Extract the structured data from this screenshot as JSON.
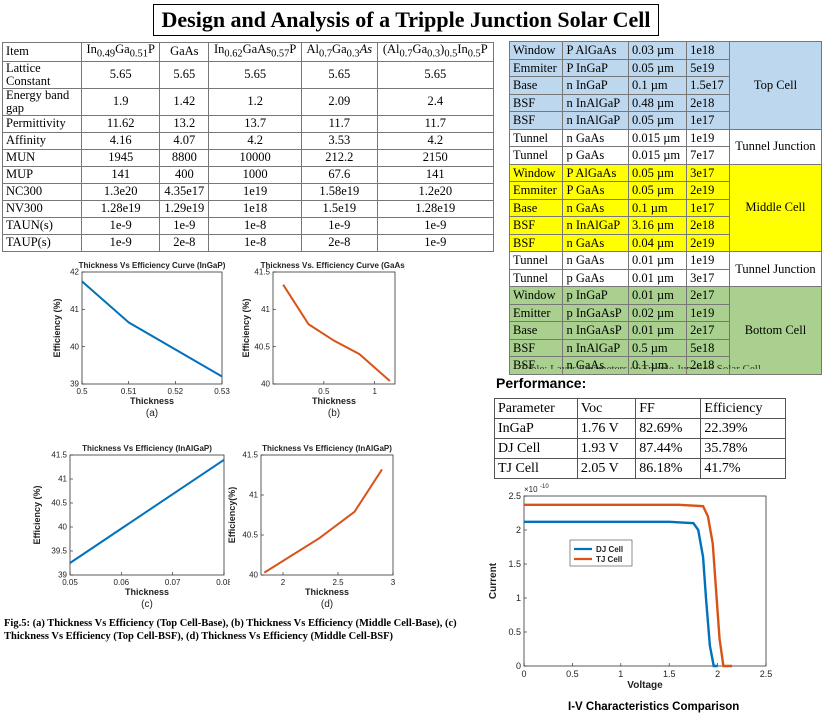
{
  "title": "Design and Analysis of a Tripple Junction Solar Cell",
  "param_table": {
    "header": {
      "item": "Item",
      "col1": {
        "a": "In",
        "a_sub": "0.49",
        "b": "Ga",
        "b_sub": "0.51",
        "c": "P"
      },
      "col2": "GaAs",
      "col3": {
        "a": "In",
        "a_sub": "0.62",
        "b": "GaAs",
        "b_sub": "0.57",
        "c": "P"
      },
      "col4": {
        "a": "Al",
        "a_sub": "0.7",
        "b": "Ga",
        "b_sub": "0.3",
        "c": "As"
      },
      "col5": {
        "a": "(Al",
        "a_sub": "0.7",
        "b": "Ga",
        "b_sub": "0.3",
        "c": ")",
        "c_sub": "0.5",
        "d": "In",
        "d_sub": "0.5",
        "e": "P"
      }
    },
    "rows": [
      {
        "label": "Lattice Constant",
        "values": [
          "5.65",
          "5.65",
          "5.65",
          "5.65",
          "5.65"
        ]
      },
      {
        "label": "Energy band gap",
        "values": [
          "1.9",
          "1.42",
          "1.2",
          "2.09",
          "2.4"
        ]
      },
      {
        "label": "Permittivity",
        "values": [
          "11.62",
          "13.2",
          "13.7",
          "11.7",
          "11.7"
        ]
      },
      {
        "label": "Affinity",
        "values": [
          "4.16",
          "4.07",
          "4.2",
          "3.53",
          "4.2"
        ]
      },
      {
        "label": "MUN",
        "values": [
          "1945",
          "8800",
          "10000",
          "212.2",
          "2150"
        ]
      },
      {
        "label": "MUP",
        "values": [
          "141",
          "400",
          "1000",
          "67.6",
          "141"
        ]
      },
      {
        "label": "NC300",
        "values": [
          "1.3e20",
          "4.35e17",
          "1e19",
          "1.58e19",
          "1.2e20"
        ]
      },
      {
        "label": "NV300",
        "values": [
          "1.28e19",
          "1.29e19",
          "1e18",
          "1.5e19",
          "1.28e19"
        ]
      },
      {
        "label": "TAUN(s)",
        "values": [
          "1e-9",
          "1e-9",
          "1e-8",
          "1e-9",
          "1e-9"
        ]
      },
      {
        "label": "TAUP(s)",
        "values": [
          "1e-9",
          "2e-8",
          "1e-8",
          "2e-8",
          "1e-9"
        ]
      }
    ]
  },
  "layer_table": {
    "groups": {
      "top": "Top Cell",
      "tunnel1": "Tunnel Junction",
      "middle": "Middle Cell",
      "tunnel2": "Tunnel Junction",
      "bottom": "Bottom Cell"
    },
    "rows": [
      {
        "layer": "Window",
        "material": "P AlGaAs",
        "thickness": "0.03 µm",
        "doping": "1e18",
        "color": "#bdd7ee"
      },
      {
        "layer": "Emmiter",
        "material": "P InGaP",
        "thickness": "0.05 µm",
        "doping": "5e19",
        "color": "#bdd7ee"
      },
      {
        "layer": "Base",
        "material": "n InGaP",
        "thickness": "0.1 µm",
        "doping": "1.5e17",
        "color": "#bdd7ee"
      },
      {
        "layer": "BSF",
        "material": "n InAlGaP",
        "thickness": "0.48 µm",
        "doping": "2e18",
        "color": "#bdd7ee"
      },
      {
        "layer": "BSF",
        "material": "n InAlGaP",
        "thickness": "0.05 µm",
        "doping": "1e17",
        "color": "#bdd7ee"
      },
      {
        "layer": "Tunnel",
        "material": "n GaAs",
        "thickness": "0.015 µm",
        "doping": "1e19",
        "color": "#ffffff"
      },
      {
        "layer": "Tunnel",
        "material": "p GaAs",
        "thickness": "0.015 µm",
        "doping": "7e17",
        "color": "#ffffff"
      },
      {
        "layer": "Window",
        "material": "P AlGaAs",
        "thickness": "0.05 µm",
        "doping": "3e17",
        "color": "#ffff00"
      },
      {
        "layer": "Emmiter",
        "material": "P GaAs",
        "thickness": "0.05 µm",
        "doping": "2e19",
        "color": "#ffff00"
      },
      {
        "layer": "Base",
        "material": "n GaAs",
        "thickness": "0.1 µm",
        "doping": "1e17",
        "color": "#ffff00"
      },
      {
        "layer": "BSF",
        "material": "n InAlGaP",
        "thickness": "3.16 µm",
        "doping": "2e18",
        "color": "#ffff00"
      },
      {
        "layer": "BSF",
        "material": "n GaAs",
        "thickness": "0.04 µm",
        "doping": "2e19",
        "color": "#ffff00"
      },
      {
        "layer": "Tunnel",
        "material": "n GaAs",
        "thickness": "0.01 µm",
        "doping": "1e19",
        "color": "#ffffff"
      },
      {
        "layer": "Tunnel",
        "material": "p GaAs",
        "thickness": "0.01 µm",
        "doping": "3e17",
        "color": "#ffffff"
      },
      {
        "layer": "Window",
        "material": "p InGaP",
        "thickness": "0.01 µm",
        "doping": "2e17",
        "color": "#a9d08e"
      },
      {
        "layer": "Emitter",
        "material": "p InGaAsP",
        "thickness": "0.02 µm",
        "doping": "1e19",
        "color": "#a9d08e"
      },
      {
        "layer": "Base",
        "material": "n InGaAsP",
        "thickness": "0.01 µm",
        "doping": "2e17",
        "color": "#a9d08e"
      },
      {
        "layer": "BSF",
        "material": "n InAlGaP",
        "thickness": "0.5 µm",
        "doping": "5e18",
        "color": "#a9d08e"
      },
      {
        "layer": "BSF",
        "material": "n GaAs",
        "thickness": "0.1 µm",
        "doping": "2e18",
        "color": "#a9d08e"
      }
    ],
    "caption_fragment": "Table: Layer Parameters of Tripple Junction Solar Cell"
  },
  "performance": {
    "heading": "Performance:",
    "header": [
      "Parameter",
      "Voc",
      "FF",
      "Efficiency"
    ],
    "rows": [
      [
        "InGaP",
        "1.76 V",
        "82.69%",
        "22.39%"
      ],
      [
        "DJ Cell",
        "1.93 V",
        "87.44%",
        "35.78%"
      ],
      [
        "TJ Cell",
        "2.05 V",
        "86.18%",
        "41.7%"
      ]
    ]
  },
  "fig_caption": "Fig.5: (a) Thickness Vs Efficiency (Top Cell-Base), (b) Thickness Vs Efficiency (Middle Cell-Base), (c) Thickness Vs Efficiency (Top Cell-BSF), (d) Thickness Vs Efficiency (Middle Cell-BSF)",
  "iv_caption": "I-V Characteristics Comparison",
  "chart_data": [
    {
      "id": "a",
      "type": "line",
      "sublabel": "(a)",
      "title": "Thickness Vs Efficiency Curve (InGaP)",
      "xlabel": "Thickness",
      "ylabel": "Efficiency (%)",
      "xlim": [
        0.5,
        0.53
      ],
      "ylim": [
        39,
        42
      ],
      "xticks": [
        0.5,
        0.51,
        0.52,
        0.53
      ],
      "xtick_labels": [
        "0.5",
        "0.51",
        "0.52",
        "0.53"
      ],
      "yticks": [
        39,
        40,
        41,
        42
      ],
      "ytick_labels": [
        "39",
        "40",
        "41",
        "42"
      ],
      "color": "#0072bd",
      "series": [
        {
          "x": [
            0.5,
            0.51,
            0.53
          ],
          "y": [
            41.75,
            40.65,
            39.2
          ]
        }
      ]
    },
    {
      "id": "b",
      "type": "line",
      "sublabel": "(b)",
      "title": "Thickness Vs. Efficiency Curve (GaAs)",
      "xlabel": "Thickness",
      "ylabel": "Efficiency (%)",
      "xlim": [
        0,
        1.2
      ],
      "ylim": [
        40,
        41.5
      ],
      "xticks": [
        0.5,
        1
      ],
      "xtick_labels": [
        "0.5",
        "1"
      ],
      "yticks": [
        40,
        40.5,
        41,
        41.5
      ],
      "ytick_labels": [
        "40",
        "40.5",
        "41",
        "41.5"
      ],
      "color": "#d95319",
      "series": [
        {
          "x": [
            0.1,
            0.35,
            0.6,
            0.85,
            1.15
          ],
          "y": [
            41.33,
            40.8,
            40.58,
            40.4,
            40.04
          ]
        }
      ]
    },
    {
      "id": "c",
      "type": "line",
      "sublabel": "(c)",
      "title": "Thickness Vs Efficiency (InAlGaP)",
      "xlabel": "Thickness",
      "ylabel": "Efficiency (%)",
      "xlim": [
        0.05,
        0.08
      ],
      "ylim": [
        39,
        41.5
      ],
      "xticks": [
        0.05,
        0.06,
        0.07,
        0.08
      ],
      "xtick_labels": [
        "0.05",
        "0.06",
        "0.07",
        "0.08"
      ],
      "yticks": [
        39,
        39.5,
        40,
        40.5,
        41,
        41.5
      ],
      "ytick_labels": [
        "39",
        "39.5",
        "40",
        "40.5",
        "41",
        "41.5"
      ],
      "color": "#0072bd",
      "series": [
        {
          "x": [
            0.05,
            0.08
          ],
          "y": [
            39.25,
            41.4
          ]
        }
      ]
    },
    {
      "id": "d",
      "type": "line",
      "sublabel": "(d)",
      "title": "Thickness Vs Efficiency (InAlGaP)",
      "xlabel": "Thickness",
      "ylabel": "Efficiency(%)",
      "xlim": [
        1.8,
        3.0
      ],
      "ylim": [
        40,
        41.5
      ],
      "xticks": [
        2,
        2.5,
        3
      ],
      "xtick_labels": [
        "2",
        "2.5",
        "3"
      ],
      "yticks": [
        40,
        40.5,
        41,
        41.5
      ],
      "ytick_labels": [
        "40",
        "40.5",
        "41",
        "41.5"
      ],
      "color": "#d95319",
      "series": [
        {
          "x": [
            1.83,
            2.33,
            2.65,
            2.9
          ],
          "y": [
            40.03,
            40.46,
            40.79,
            41.32
          ]
        }
      ]
    },
    {
      "id": "iv",
      "type": "line",
      "xlabel": "Voltage",
      "ylabel": "Current",
      "exponent_label": "×10",
      "exponent_power": "-10",
      "xlim": [
        0,
        2.5
      ],
      "ylim": [
        0,
        2.5
      ],
      "xticks": [
        0,
        0.5,
        1,
        1.5,
        2,
        2.5
      ],
      "xtick_labels": [
        "0",
        "0.5",
        "1",
        "1.5",
        "2",
        "2.5"
      ],
      "yticks": [
        0,
        0.5,
        1,
        1.5,
        2,
        2.5
      ],
      "ytick_labels": [
        "0",
        "0.5",
        "1",
        "1.5",
        "2",
        "2.5"
      ],
      "legend": "top-left",
      "series": [
        {
          "name": "DJ Cell",
          "color": "#0072bd",
          "x": [
            0,
            1.5,
            1.75,
            1.8,
            1.85,
            1.88,
            1.92,
            1.96,
            2.0
          ],
          "y": [
            2.12,
            2.12,
            2.1,
            2.0,
            1.6,
            1.0,
            0.3,
            0.0,
            0.0
          ]
        },
        {
          "name": "TJ Cell",
          "color": "#d95319",
          "x": [
            0,
            1.6,
            1.85,
            1.9,
            1.95,
            1.98,
            2.02,
            2.06,
            2.15
          ],
          "y": [
            2.37,
            2.37,
            2.35,
            2.2,
            1.8,
            1.2,
            0.4,
            0.0,
            0.0
          ]
        }
      ]
    }
  ]
}
